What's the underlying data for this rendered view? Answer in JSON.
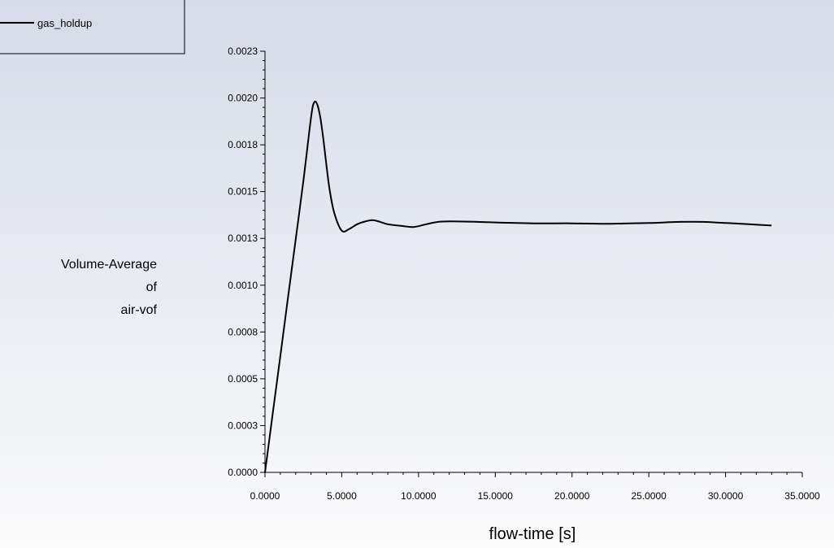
{
  "chart_data": {
    "type": "line",
    "title": "",
    "xlabel": "flow-time [s]",
    "ylabel_lines": [
      "Volume-Average",
      "of",
      "air-vof"
    ],
    "xlim": [
      0,
      35
    ],
    "ylim": [
      0,
      0.0023
    ],
    "x_ticks": [
      "0.0000",
      "5.0000",
      "10.0000",
      "15.0000",
      "20.0000",
      "25.0000",
      "30.0000",
      "35.0000"
    ],
    "y_ticks": [
      "0.0000",
      "0.0003",
      "0.0005",
      "0.0008",
      "0.0010",
      "0.0013",
      "0.0015",
      "0.0018",
      "0.0020",
      "0.0023"
    ],
    "legend_position": "top-left",
    "series": [
      {
        "name": "gas_holdup",
        "color": "#000000",
        "x": [
          0.0,
          0.5,
          1.0,
          1.5,
          2.0,
          2.5,
          3.0,
          3.2,
          3.4,
          3.6,
          3.8,
          4.0,
          4.2,
          4.5,
          5.0,
          5.5,
          6.0,
          6.5,
          7.0,
          7.5,
          8.0,
          9.0,
          9.7,
          10.5,
          11.5,
          13.0,
          15.0,
          17.5,
          20.0,
          22.5,
          25.0,
          27.0,
          28.5,
          30.0,
          31.5,
          33.0
        ],
        "y": [
          0.0,
          0.000318,
          0.000636,
          0.000955,
          0.001273,
          0.001591,
          0.00194,
          0.00202,
          0.00201,
          0.00194,
          0.00182,
          0.00168,
          0.00155,
          0.00142,
          0.00132,
          0.00133,
          0.001355,
          0.00137,
          0.001378,
          0.001368,
          0.001355,
          0.001345,
          0.00134,
          0.001355,
          0.00137,
          0.00137,
          0.001365,
          0.00136,
          0.00136,
          0.001358,
          0.001362,
          0.001368,
          0.001368,
          0.001362,
          0.001355,
          0.001348
        ]
      }
    ]
  }
}
